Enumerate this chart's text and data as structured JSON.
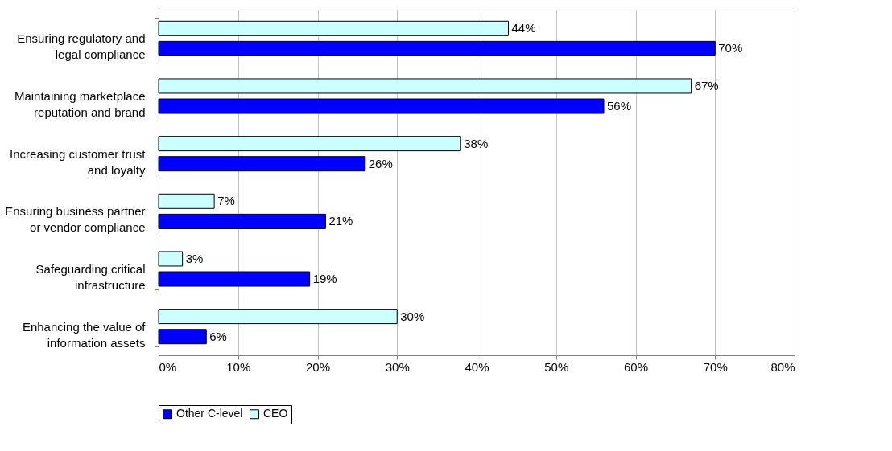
{
  "chart_data": {
    "type": "bar",
    "orientation": "horizontal",
    "categories": [
      "Ensuring regulatory and legal compliance",
      "Maintaining marketplace reputation and brand",
      "Increasing customer trust and loyalty",
      "Ensuring business partner or vendor compliance",
      "Safeguarding critical infrastructure",
      "Enhancing the value of information assets"
    ],
    "series": [
      {
        "name": "Other C-level",
        "color": "#0000ff",
        "values": [
          70,
          56,
          26,
          21,
          19,
          6
        ],
        "value_labels": [
          "70%",
          "56%",
          "26%",
          "21%",
          "19%",
          "6%"
        ]
      },
      {
        "name": "CEO",
        "color": "#ccffff",
        "values": [
          44,
          67,
          38,
          7,
          3,
          30
        ],
        "value_labels": [
          "44%",
          "67%",
          "38%",
          "7%",
          "3%",
          "30%"
        ]
      }
    ],
    "xlim": [
      0,
      80
    ],
    "xticks": [
      {
        "value": 0,
        "label": "0%"
      },
      {
        "value": 10,
        "label": "10%"
      },
      {
        "value": 20,
        "label": "20%"
      },
      {
        "value": 30,
        "label": "30%"
      },
      {
        "value": 40,
        "label": "40%"
      },
      {
        "value": 50,
        "label": "50%"
      },
      {
        "value": 60,
        "label": "60%"
      },
      {
        "value": 70,
        "label": "70%"
      },
      {
        "value": 80,
        "label": "80%"
      }
    ],
    "grid": "x",
    "legend": "bottom"
  }
}
